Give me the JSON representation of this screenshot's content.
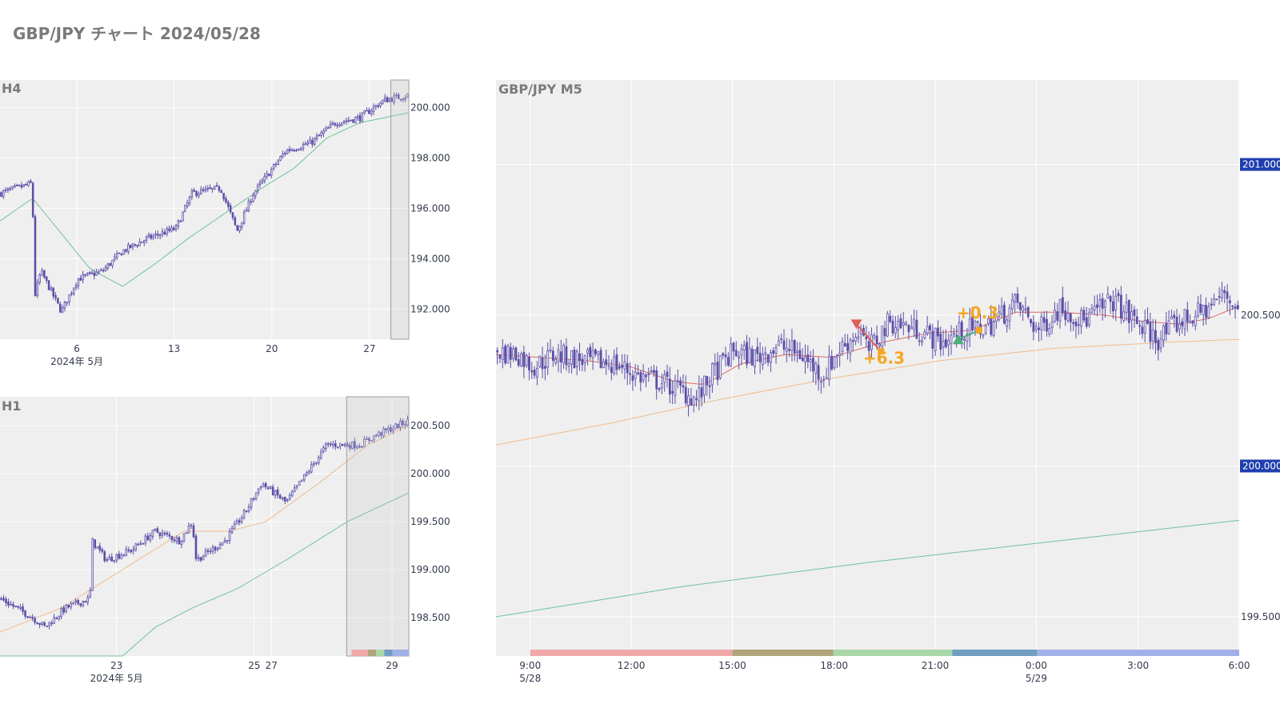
{
  "title": "GBP/JPY チャート 2024/05/28",
  "colors": {
    "candle": "#5b4fa8",
    "plot_bg": "#efefef",
    "grid": "#ffffff",
    "ma_short": "#d9534f",
    "ma_mid": "#f0b27a",
    "ma_long": "#5cb88a",
    "price_box": "#1f3fae",
    "highlight": "#9e9e9e",
    "trade_label": "#f5a623",
    "sell_marker": "#e0605a",
    "buy_marker": "#4caf7d"
  },
  "chart_data": [
    {
      "id": "h4",
      "type": "candlestick",
      "panel_label": "H4",
      "ylim": [
        190.8,
        201.1
      ],
      "y_ticks": [
        192.0,
        194.0,
        196.0,
        198.0,
        200.0
      ],
      "y_tick_labels": [
        "192.000",
        "194.000",
        "196.000",
        "198.000",
        "200.000"
      ],
      "x_ticks": [
        {
          "label": "6",
          "sub": "2024年 5月",
          "pos": 0.188
        },
        {
          "label": "13",
          "pos": 0.426
        },
        {
          "label": "20",
          "pos": 0.665
        },
        {
          "label": "27",
          "pos": 0.904
        }
      ],
      "price_path": [
        [
          0,
          196.6
        ],
        [
          0.08,
          197.0
        ],
        [
          0.082,
          192.3
        ],
        [
          0.1,
          193.5
        ],
        [
          0.15,
          191.9
        ],
        [
          0.19,
          193.2
        ],
        [
          0.25,
          193.5
        ],
        [
          0.3,
          194.3
        ],
        [
          0.36,
          194.8
        ],
        [
          0.43,
          195.2
        ],
        [
          0.47,
          196.6
        ],
        [
          0.54,
          196.8
        ],
        [
          0.58,
          195.1
        ],
        [
          0.62,
          196.6
        ],
        [
          0.7,
          198.3
        ],
        [
          0.76,
          198.6
        ],
        [
          0.82,
          199.4
        ],
        [
          0.88,
          199.6
        ],
        [
          0.94,
          200.3
        ],
        [
          1.0,
          200.5
        ]
      ],
      "ma": [
        {
          "color": "#5cb88a",
          "path": [
            [
              0,
              195.5
            ],
            [
              0.08,
              196.4
            ],
            [
              0.15,
              195.0
            ],
            [
              0.22,
              193.6
            ],
            [
              0.3,
              192.9
            ],
            [
              0.38,
              193.8
            ],
            [
              0.46,
              194.8
            ],
            [
              0.55,
              195.8
            ],
            [
              0.65,
              196.9
            ],
            [
              0.72,
              197.6
            ],
            [
              0.8,
              198.8
            ],
            [
              0.88,
              199.4
            ],
            [
              1.0,
              199.8
            ]
          ]
        }
      ],
      "highlight": [
        0.956,
        1.0
      ]
    },
    {
      "id": "h1",
      "type": "candlestick",
      "panel_label": "H1",
      "ylim": [
        198.1,
        200.8
      ],
      "y_ticks": [
        198.5,
        199.0,
        199.5,
        200.0,
        200.5
      ],
      "y_tick_labels": [
        "198.500",
        "199.000",
        "199.500",
        "200.000",
        "200.500"
      ],
      "x_ticks": [
        {
          "label": "23",
          "sub": "2024年 5月",
          "pos": 0.285
        },
        {
          "label": "25",
          "pos": 0.622
        },
        {
          "label": "27",
          "pos": 0.664
        },
        {
          "label": "29",
          "pos": 0.959
        }
      ],
      "price_path": [
        [
          0,
          198.7
        ],
        [
          0.08,
          198.5
        ],
        [
          0.11,
          198.4
        ],
        [
          0.16,
          198.6
        ],
        [
          0.22,
          198.7
        ],
        [
          0.225,
          199.3
        ],
        [
          0.26,
          199.1
        ],
        [
          0.32,
          199.2
        ],
        [
          0.38,
          199.4
        ],
        [
          0.44,
          199.3
        ],
        [
          0.47,
          199.5
        ],
        [
          0.48,
          199.1
        ],
        [
          0.55,
          199.3
        ],
        [
          0.6,
          199.6
        ],
        [
          0.64,
          199.9
        ],
        [
          0.7,
          199.7
        ],
        [
          0.75,
          200.0
        ],
        [
          0.8,
          200.3
        ],
        [
          0.88,
          200.3
        ],
        [
          0.92,
          200.4
        ],
        [
          1.0,
          200.55
        ]
      ],
      "ma": [
        {
          "color": "#f0b27a",
          "path": [
            [
              0,
              198.35
            ],
            [
              0.15,
              198.6
            ],
            [
              0.3,
              199.0
            ],
            [
              0.45,
              199.4
            ],
            [
              0.56,
              199.4
            ],
            [
              0.65,
              199.5
            ],
            [
              0.78,
              199.9
            ],
            [
              0.9,
              200.3
            ],
            [
              1.0,
              200.5
            ]
          ]
        },
        {
          "color": "#5cb88a",
          "path": [
            [
              0,
              198.1
            ],
            [
              0.3,
              198.1
            ],
            [
              0.38,
              198.4
            ],
            [
              0.47,
              198.6
            ],
            [
              0.58,
              198.8
            ],
            [
              0.7,
              199.1
            ],
            [
              0.85,
              199.5
            ],
            [
              1.0,
              199.8
            ]
          ]
        }
      ],
      "highlight": [
        0.848,
        1.0
      ],
      "session_bar": true
    },
    {
      "id": "m5",
      "type": "candlestick",
      "panel_label": "GBP/JPY M5",
      "ylim": [
        199.37,
        201.28
      ],
      "y_ticks": [
        199.5,
        200.5
      ],
      "y_tick_labels": [
        "199.500",
        "200.500"
      ],
      "price_boxes": [
        {
          "value": 201.0,
          "label": "201.000"
        },
        {
          "value": 200.0,
          "label": "200.000"
        }
      ],
      "x_ticks": [
        {
          "label": "9:00",
          "sub": "5/28",
          "pos": 0.046
        },
        {
          "label": "12:00",
          "pos": 0.182
        },
        {
          "label": "15:00",
          "pos": 0.318
        },
        {
          "label": "18:00",
          "pos": 0.455
        },
        {
          "label": "21:00",
          "pos": 0.591
        },
        {
          "label": "0:00",
          "sub": "5/29",
          "pos": 0.727
        },
        {
          "label": "3:00",
          "pos": 0.864
        },
        {
          "label": "6:00",
          "pos": 1.0
        }
      ],
      "price_path": [
        [
          0,
          200.38
        ],
        [
          0.03,
          200.37
        ],
        [
          0.05,
          200.33
        ],
        [
          0.08,
          200.37
        ],
        [
          0.12,
          200.35
        ],
        [
          0.16,
          200.34
        ],
        [
          0.19,
          200.3
        ],
        [
          0.22,
          200.28
        ],
        [
          0.25,
          200.25
        ],
        [
          0.27,
          200.22
        ],
        [
          0.29,
          200.3
        ],
        [
          0.32,
          200.38
        ],
        [
          0.35,
          200.36
        ],
        [
          0.38,
          200.4
        ],
        [
          0.41,
          200.37
        ],
        [
          0.44,
          200.3
        ],
        [
          0.46,
          200.38
        ],
        [
          0.49,
          200.45
        ],
        [
          0.5,
          200.38
        ],
        [
          0.53,
          200.48
        ],
        [
          0.57,
          200.45
        ],
        [
          0.6,
          200.41
        ],
        [
          0.63,
          200.45
        ],
        [
          0.66,
          200.46
        ],
        [
          0.7,
          200.54
        ],
        [
          0.73,
          200.45
        ],
        [
          0.76,
          200.53
        ],
        [
          0.79,
          200.48
        ],
        [
          0.83,
          200.55
        ],
        [
          0.86,
          200.48
        ],
        [
          0.89,
          200.42
        ],
        [
          0.92,
          200.48
        ],
        [
          0.95,
          200.51
        ],
        [
          0.98,
          200.57
        ],
        [
          1.0,
          200.52
        ]
      ],
      "ma": [
        {
          "color": "#d9534f",
          "path": [
            [
              0,
              200.37
            ],
            [
              0.06,
              200.36
            ],
            [
              0.12,
              200.35
            ],
            [
              0.18,
              200.33
            ],
            [
              0.24,
              200.28
            ],
            [
              0.28,
              200.27
            ],
            [
              0.33,
              200.34
            ],
            [
              0.39,
              200.37
            ],
            [
              0.45,
              200.36
            ],
            [
              0.52,
              200.41
            ],
            [
              0.58,
              200.44
            ],
            [
              0.64,
              200.45
            ],
            [
              0.7,
              200.51
            ],
            [
              0.76,
              200.51
            ],
            [
              0.82,
              200.5
            ],
            [
              0.87,
              200.48
            ],
            [
              0.92,
              200.47
            ],
            [
              0.96,
              200.49
            ],
            [
              1.0,
              200.53
            ]
          ]
        },
        {
          "color": "#f0b27a",
          "path": [
            [
              0,
              200.07
            ],
            [
              0.15,
              200.14
            ],
            [
              0.3,
              200.22
            ],
            [
              0.45,
              200.29
            ],
            [
              0.6,
              200.35
            ],
            [
              0.75,
              200.39
            ],
            [
              0.9,
              200.41
            ],
            [
              1.0,
              200.42
            ]
          ]
        },
        {
          "color": "#5cb88a",
          "path": [
            [
              0,
              199.5
            ],
            [
              0.25,
              199.6
            ],
            [
              0.5,
              199.68
            ],
            [
              0.75,
              199.75
            ],
            [
              1.0,
              199.82
            ]
          ]
        }
      ],
      "trades": [
        {
          "type": "sell",
          "x_start": 0.485,
          "x_end": 0.518,
          "y_start": 200.47,
          "y_end": 200.38,
          "label": "+6.3",
          "label_x": 0.522,
          "label_y": 200.34
        },
        {
          "type": "buy",
          "x_start": 0.622,
          "x_end": 0.65,
          "y_start": 200.42,
          "y_end": 200.45,
          "label": "+0.3",
          "label_x": 0.648,
          "label_y": 200.49
        }
      ],
      "session_bar": true
    }
  ],
  "session_colors": [
    "#f0a8a8",
    "#b0a47a",
    "#a8d8a8",
    "#6f9ec2",
    "#a0b0e8"
  ]
}
